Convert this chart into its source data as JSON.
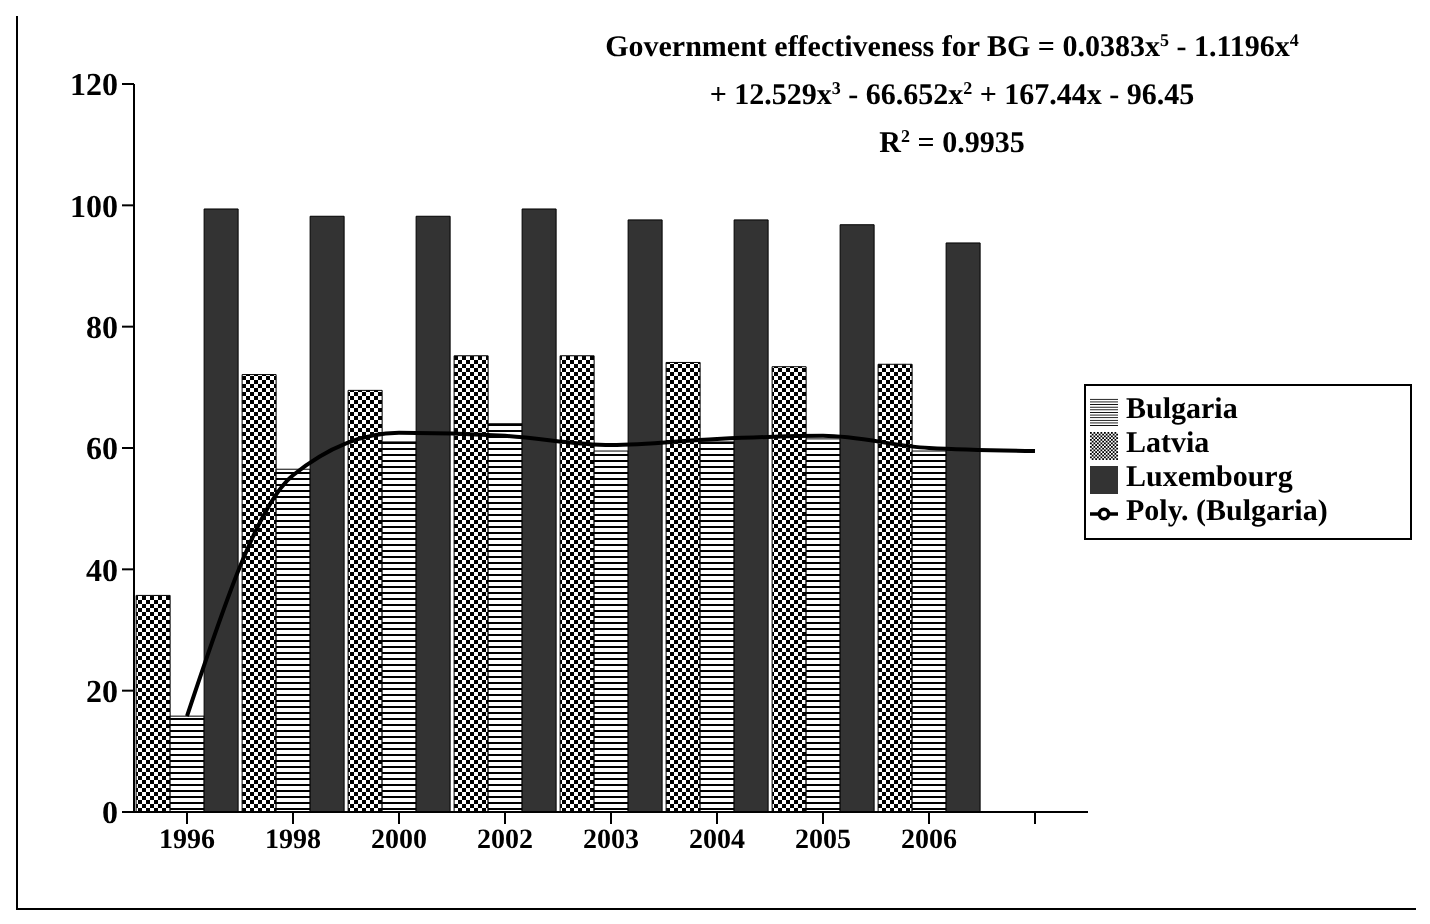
{
  "chart_data": {
    "type": "bar",
    "categories": [
      "1996",
      "1998",
      "2000",
      "2002",
      "2003",
      "2004",
      "2005",
      "2006",
      null
    ],
    "series": [
      {
        "name": "Latvia",
        "color": "#000000",
        "values": [
          35.7,
          72.1,
          69.5,
          75.2,
          75.2,
          74.1,
          73.4,
          73.8,
          null
        ]
      },
      {
        "name": "Bulgaria",
        "color": "#000000",
        "values": [
          15.8,
          56.5,
          61,
          64,
          59.5,
          61,
          61.5,
          59.5,
          null
        ]
      },
      {
        "name": "Luxembourg",
        "color": "#333333",
        "values": [
          99.4,
          98.2,
          98.2,
          99.4,
          97.6,
          97.6,
          96.8,
          93.8,
          null
        ]
      },
      {
        "name": "Poly. (Bulgaria)",
        "type": "line",
        "color": "#000000",
        "values": [
          15.8,
          55.5,
          62.5,
          62,
          60.5,
          61.5,
          62,
          60,
          59.5
        ]
      }
    ],
    "annotations": [
      "Government effectiveness for BG = 0.0383x$^{5}$ - 1.1196x$^{4}$",
      "+ 12.529x$^{3}$ - 66.652x$^{2}$ + 167.44x - 96.45",
      "R$^{2}$ = 0.9935"
    ],
    "ylim": [
      0,
      120
    ],
    "yticks": [
      0,
      20,
      40,
      60,
      80,
      100,
      120
    ],
    "grid": false,
    "legend": "right",
    "marker": "none",
    "line_style": "solid"
  }
}
